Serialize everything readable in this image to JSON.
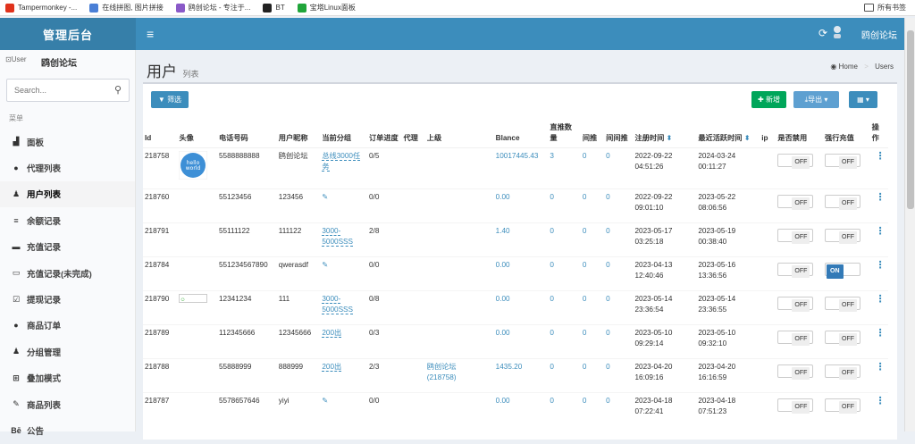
{
  "bookmarks": [
    {
      "label": "Tampermonkey -...",
      "color": "#e0321c"
    },
    {
      "label": "在线拼图, 图片拼接",
      "color": "#4a7fd6"
    },
    {
      "label": "鸥创论坛 - 专注于...",
      "color": "#8a5ac8"
    },
    {
      "label": "BT",
      "color": "#222"
    },
    {
      "label": "宝塔Linux面板",
      "color": "#20a53a"
    }
  ],
  "bookmarks_all": "所有书签",
  "app": {
    "logo": "管理后台",
    "user": "鸥创论坛"
  },
  "sidebar": {
    "user_img_alt": "User",
    "user_name": "鸥创论坛",
    "search_placeholder": "Search...",
    "header": "菜单",
    "items": [
      {
        "label": "面板",
        "icon": "▟"
      },
      {
        "label": "代理列表",
        "icon": "●"
      },
      {
        "label": "用户列表",
        "icon": "♟"
      },
      {
        "label": "余额记录",
        "icon": "≡"
      },
      {
        "label": "充值记录",
        "icon": "▬"
      },
      {
        "label": "充值记录(未完成)",
        "icon": "▭"
      },
      {
        "label": "提现记录",
        "icon": "☑"
      },
      {
        "label": "商品订单",
        "icon": "●"
      },
      {
        "label": "分组管理",
        "icon": "♟"
      },
      {
        "label": "叠加模式",
        "icon": "⊞"
      },
      {
        "label": "商品列表",
        "icon": "✎"
      },
      {
        "label": "公告",
        "icon": "Bē"
      }
    ]
  },
  "page": {
    "title": "用户",
    "subtitle": "列表",
    "breadcrumb_home": "Home",
    "breadcrumb_current": "Users"
  },
  "toolbar": {
    "filter": "筛选",
    "new": "新增",
    "export": "导出",
    "cols": "▦ ▾"
  },
  "table": {
    "headers": [
      "Id",
      "头像",
      "电话号码",
      "用户昵称",
      "当前分组",
      "订单进度",
      "代理",
      "上级",
      "Blance",
      "直推数量",
      "间推",
      "间间推",
      "注册时间",
      "最近活跃时间",
      "ip",
      "是否禁用",
      "强行充值",
      "操作"
    ],
    "rows": [
      {
        "id": "218758",
        "avatar": "hello world",
        "phone": "5588888888",
        "nick": "鸥创论坛",
        "group": "总线3000任务",
        "prog": "0/5",
        "agent": "",
        "parent": "",
        "parent_id": "",
        "bal": "10017445.43",
        "direct": "3",
        "ind": "0",
        "ind2": "0",
        "reg": "2022-09-22 04:51:26",
        "act": "2024-03-24 00:11:27",
        "ip": "",
        "ban": "OFF",
        "force": "OFF"
      },
      {
        "id": "218760",
        "avatar": "",
        "phone": "55123456",
        "nick": "123456",
        "group": "✎",
        "prog": "0/0",
        "agent": "",
        "parent": "",
        "parent_id": "",
        "bal": "0.00",
        "direct": "0",
        "ind": "0",
        "ind2": "0",
        "reg": "2022-09-22 09:01:10",
        "act": "2023-05-22 08:06:56",
        "ip": "",
        "ban": "OFF",
        "force": "OFF"
      },
      {
        "id": "218791",
        "avatar": "",
        "phone": "55111122",
        "nick": "111122",
        "group": "3000-5000SSS",
        "prog": "2/8",
        "agent": "",
        "parent": "",
        "parent_id": "",
        "bal": "1.40",
        "direct": "0",
        "ind": "0",
        "ind2": "0",
        "reg": "2023-05-17 03:25:18",
        "act": "2023-05-19 00:38:40",
        "ip": "",
        "ban": "OFF",
        "force": "OFF"
      },
      {
        "id": "218784",
        "avatar": "",
        "phone": "551234567890",
        "nick": "qwerasdf",
        "group": "✎",
        "prog": "0/0",
        "agent": "",
        "parent": "",
        "parent_id": "",
        "bal": "0.00",
        "direct": "0",
        "ind": "0",
        "ind2": "0",
        "reg": "2023-04-13 12:40:46",
        "act": "2023-05-16 13:36:56",
        "ip": "",
        "ban": "OFF",
        "force": "ON"
      },
      {
        "id": "218790",
        "avatar": "small",
        "phone": "12341234",
        "nick": "111",
        "group": "3000-5000SSS",
        "prog": "0/8",
        "agent": "",
        "parent": "",
        "parent_id": "",
        "bal": "0.00",
        "direct": "0",
        "ind": "0",
        "ind2": "0",
        "reg": "2023-05-14 23:36:54",
        "act": "2023-05-14 23:36:55",
        "ip": "",
        "ban": "OFF",
        "force": "OFF"
      },
      {
        "id": "218789",
        "avatar": "",
        "phone": "112345666",
        "nick": "12345666",
        "group": "200出",
        "prog": "0/3",
        "agent": "",
        "parent": "",
        "parent_id": "",
        "bal": "0.00",
        "direct": "0",
        "ind": "0",
        "ind2": "0",
        "reg": "2023-05-10 09:29:14",
        "act": "2023-05-10 09:32:10",
        "ip": "",
        "ban": "OFF",
        "force": "OFF"
      },
      {
        "id": "218788",
        "avatar": "",
        "phone": "55888999",
        "nick": "888999",
        "group": "200出",
        "prog": "2/3",
        "agent": "",
        "parent": "鸥创论坛",
        "parent_id": "(218758)",
        "bal": "1435.20",
        "direct": "0",
        "ind": "0",
        "ind2": "0",
        "reg": "2023-04-20 16:09:16",
        "act": "2023-04-20 16:16:59",
        "ip": "",
        "ban": "OFF",
        "force": "OFF"
      },
      {
        "id": "218787",
        "avatar": "",
        "phone": "5578657646",
        "nick": "yiyi",
        "group": "✎",
        "prog": "0/0",
        "agent": "",
        "parent": "",
        "parent_id": "",
        "bal": "0.00",
        "direct": "0",
        "ind": "0",
        "ind2": "0",
        "reg": "2023-04-18 07:22:41",
        "act": "2023-04-18 07:51:23",
        "ip": "",
        "ban": "OFF",
        "force": "OFF"
      }
    ]
  }
}
